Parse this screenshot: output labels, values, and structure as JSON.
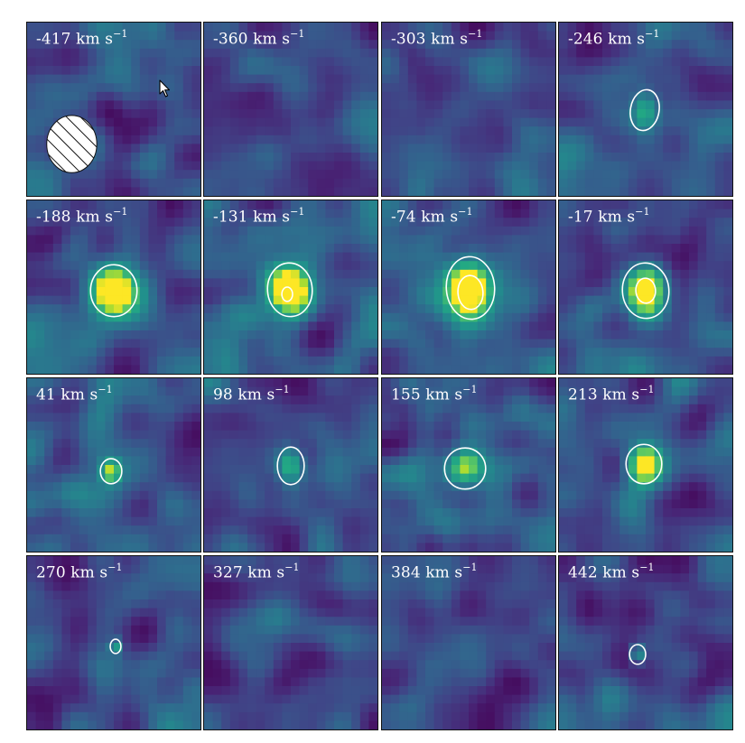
{
  "chart_data": {
    "type": "heatmap",
    "layout": {
      "rows": 4,
      "cols": 4
    },
    "colormap": "viridis",
    "unit_label": "km s",
    "unit_exponent": "−1",
    "contour_color": "#ffffff",
    "beam": {
      "present": true,
      "panel_index": 0,
      "fill": "hatched"
    },
    "panels": [
      {
        "velocity": "-417",
        "peak": 0.3,
        "contours": 0
      },
      {
        "velocity": "-360",
        "peak": 0.25,
        "contours": 0
      },
      {
        "velocity": "-303",
        "peak": 0.25,
        "contours": 0
      },
      {
        "velocity": "-246",
        "peak": 0.6,
        "contours": 1
      },
      {
        "velocity": "-188",
        "peak": 0.92,
        "contours": 1
      },
      {
        "velocity": "-131",
        "peak": 0.95,
        "contours": 2
      },
      {
        "velocity": "-74",
        "peak": 1.0,
        "contours": 2
      },
      {
        "velocity": "-17",
        "peak": 1.0,
        "contours": 2
      },
      {
        "velocity": "41",
        "peak": 0.58,
        "contours": 1
      },
      {
        "velocity": "98",
        "peak": 0.6,
        "contours": 1
      },
      {
        "velocity": "155",
        "peak": 0.75,
        "contours": 1
      },
      {
        "velocity": "213",
        "peak": 0.75,
        "contours": 1
      },
      {
        "velocity": "270",
        "peak": 0.5,
        "contours": 1
      },
      {
        "velocity": "327",
        "peak": 0.4,
        "contours": 0
      },
      {
        "velocity": "384",
        "peak": 0.35,
        "contours": 0
      },
      {
        "velocity": "442",
        "peak": 0.55,
        "contours": 1
      }
    ]
  }
}
